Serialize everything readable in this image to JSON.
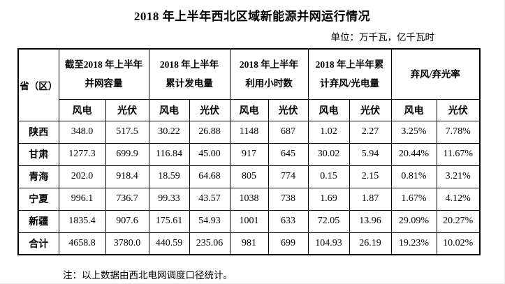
{
  "title": "2018 年上半年西北区域新能源并网运行情况",
  "unit_note": "单位：万千瓦，亿千瓦时",
  "table": {
    "row_header": "省（区）",
    "groups": [
      {
        "line1": "截至2018 年上半年",
        "line2": "并网容量"
      },
      {
        "line1": "2018 年上半年",
        "line2": "累计发电量"
      },
      {
        "line1": "2018 年上半年",
        "line2": "利用小时数"
      },
      {
        "line1": "2018 年上半年累",
        "line2": "计弃风/光电量"
      },
      {
        "line1": "弃风/弃光率",
        "line2": ""
      }
    ],
    "sub_headers": [
      "风电",
      "光伏",
      "风电",
      "光伏",
      "风电",
      "光伏",
      "风电",
      "光伏",
      "风电",
      "光伏"
    ],
    "rows": [
      {
        "name": "陕西",
        "values": [
          "348.0",
          "517.5",
          "30.22",
          "26.88",
          "1148",
          "687",
          "1.02",
          "2.27",
          "3.25%",
          "7.78%"
        ]
      },
      {
        "name": "甘肃",
        "values": [
          "1277.3",
          "699.9",
          "116.84",
          "45.00",
          "917",
          "645",
          "30.02",
          "5.94",
          "20.44%",
          "11.67%"
        ]
      },
      {
        "name": "青海",
        "values": [
          "202.0",
          "918.4",
          "18.59",
          "64.68",
          "805",
          "774",
          "0.15",
          "2.15",
          "0.81%",
          "3.21%"
        ]
      },
      {
        "name": "宁夏",
        "values": [
          "996.1",
          "736.7",
          "99.33",
          "43.57",
          "1038",
          "738",
          "1.69",
          "1.87",
          "1.67%",
          "4.12%"
        ]
      },
      {
        "name": "新疆",
        "values": [
          "1835.4",
          "907.6",
          "175.61",
          "54.93",
          "1001",
          "633",
          "72.05",
          "13.96",
          "29.09%",
          "20.27%"
        ]
      },
      {
        "name": "合计",
        "values": [
          "4658.8",
          "3780.0",
          "440.59",
          "235.06",
          "981",
          "699",
          "104.93",
          "26.19",
          "19.23%",
          "10.02%"
        ]
      }
    ]
  },
  "footnote": "注：以上数据由西北电网调度口径统计。",
  "colors": {
    "text": "#000000",
    "background": "#ffffff",
    "border": "#000000"
  }
}
